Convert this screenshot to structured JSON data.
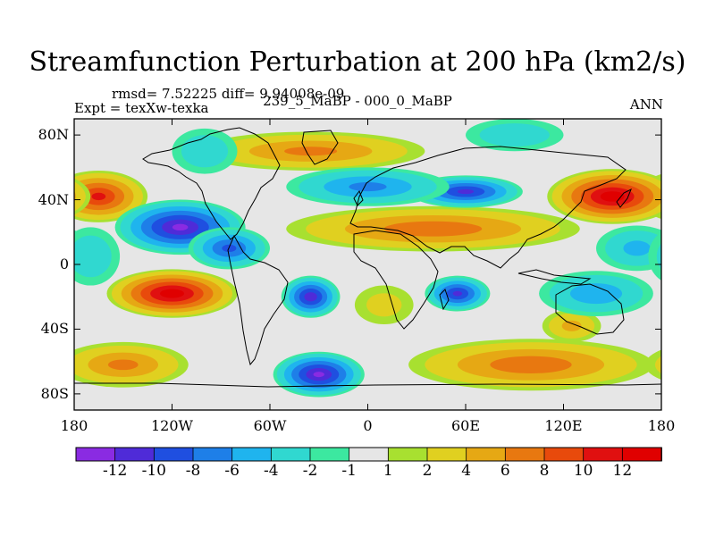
{
  "header": {
    "title": "Streamfunction Perturbation at 200 hPa (km2/s)",
    "stats": "rmsd= 7.52225  diff= 9.94008e-09",
    "left": "Expt = texXw-texka",
    "center": "239_5_MaBP - 000_0_MaBP",
    "right": "ANN"
  },
  "chart_data": {
    "type": "heatmap",
    "title": "Streamfunction Perturbation at 200 hPa (km2/s)",
    "xlabel": "",
    "ylabel": "",
    "xlim": [
      -180,
      180
    ],
    "ylim": [
      -90,
      90
    ],
    "x_ticks": [
      {
        "v": -180,
        "label": "180"
      },
      {
        "v": -120,
        "label": "120W"
      },
      {
        "v": -60,
        "label": "60W"
      },
      {
        "v": 0,
        "label": "0"
      },
      {
        "v": 60,
        "label": "60E"
      },
      {
        "v": 120,
        "label": "120E"
      },
      {
        "v": 180,
        "label": "180"
      }
    ],
    "y_ticks": [
      {
        "v": 80,
        "label": "80N"
      },
      {
        "v": 40,
        "label": "40N"
      },
      {
        "v": 0,
        "label": "0"
      },
      {
        "v": -40,
        "label": "40S"
      },
      {
        "v": -80,
        "label": "80S"
      }
    ],
    "colorbar": {
      "levels": [
        "-12",
        "-10",
        "-8",
        "-6",
        "-4",
        "-2",
        "-1",
        "1",
        "2",
        "4",
        "6",
        "8",
        "10",
        "12"
      ],
      "colors": [
        "#8a2be2",
        "#4f2bd8",
        "#1f4fe0",
        "#1e7fe8",
        "#1fb4ee",
        "#30d8d0",
        "#3ce8a0",
        "#e6e6e6",
        "#a8e030",
        "#e0d020",
        "#e6a814",
        "#e87810",
        "#e84a0c",
        "#e01010",
        "#e00000"
      ]
    },
    "anomalies": [
      {
        "lon": -165,
        "lat": 42,
        "value": 10,
        "rx": 30,
        "ry": 16
      },
      {
        "lon": 150,
        "lat": 42,
        "value": 13,
        "rx": 40,
        "ry": 17
      },
      {
        "lon": -35,
        "lat": 70,
        "value": 6,
        "rx": 70,
        "ry": 12
      },
      {
        "lon": 40,
        "lat": 22,
        "value": 7,
        "rx": 90,
        "ry": 14
      },
      {
        "lon": -120,
        "lat": -18,
        "value": 13,
        "rx": 40,
        "ry": 15
      },
      {
        "lon": -150,
        "lat": -62,
        "value": 6,
        "rx": 40,
        "ry": 14
      },
      {
        "lon": 100,
        "lat": -62,
        "value": 7,
        "rx": 75,
        "ry": 16
      },
      {
        "lon": 125,
        "lat": -38,
        "value": 4,
        "rx": 18,
        "ry": 10
      },
      {
        "lon": 10,
        "lat": -25,
        "value": 2,
        "rx": 18,
        "ry": 12
      },
      {
        "lon": -115,
        "lat": 23,
        "value": -12,
        "rx": 40,
        "ry": 17
      },
      {
        "lon": -85,
        "lat": 10,
        "value": -8,
        "rx": 25,
        "ry": 13
      },
      {
        "lon": -35,
        "lat": -20,
        "value": -11,
        "rx": 18,
        "ry": 13
      },
      {
        "lon": 55,
        "lat": -18,
        "value": -10,
        "rx": 20,
        "ry": 11
      },
      {
        "lon": -30,
        "lat": -68,
        "value": -12,
        "rx": 28,
        "ry": 14
      },
      {
        "lon": 60,
        "lat": 45,
        "value": -10,
        "rx": 35,
        "ry": 10
      },
      {
        "lon": 0,
        "lat": 48,
        "value": -6,
        "rx": 50,
        "ry": 12
      },
      {
        "lon": 140,
        "lat": -18,
        "value": -5,
        "rx": 35,
        "ry": 14
      },
      {
        "lon": 165,
        "lat": 10,
        "value": -4,
        "rx": 25,
        "ry": 14
      },
      {
        "lon": -170,
        "lat": 5,
        "value": -3,
        "rx": 18,
        "ry": 18
      },
      {
        "lon": -100,
        "lat": 70,
        "value": -3,
        "rx": 20,
        "ry": 14
      },
      {
        "lon": 90,
        "lat": 80,
        "value": -3,
        "rx": 30,
        "ry": 10
      }
    ]
  }
}
